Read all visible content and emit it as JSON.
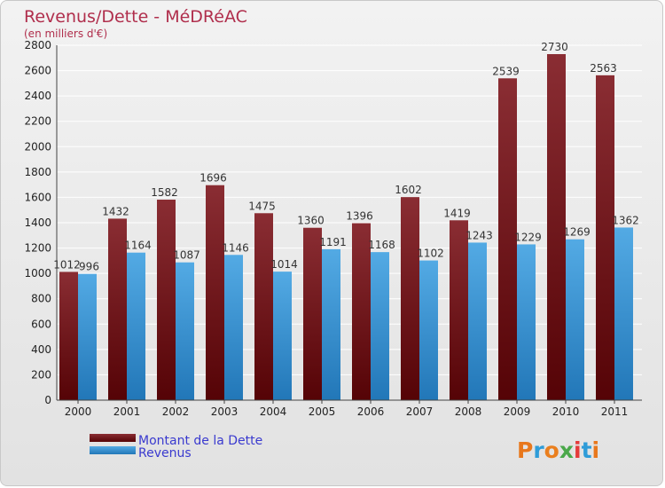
{
  "chart_data": {
    "type": "bar",
    "title": "Revenus/Dette - MéDRéAC",
    "subtitle": "(en milliers d'€)",
    "categories": [
      "2000",
      "2001",
      "2002",
      "2003",
      "2004",
      "2005",
      "2006",
      "2007",
      "2008",
      "2009",
      "2010",
      "2011"
    ],
    "series": [
      {
        "name": "Montant de la Dette",
        "color": "#7a1f25",
        "values": [
          1012,
          1432,
          1582,
          1696,
          1475,
          1360,
          1396,
          1602,
          1419,
          2539,
          2730,
          2563
        ]
      },
      {
        "name": "Revenus",
        "color": "#3d9ad6",
        "values": [
          996,
          1164,
          1087,
          1146,
          1014,
          1191,
          1168,
          1102,
          1243,
          1229,
          1269,
          1362
        ]
      }
    ],
    "ylim": [
      0,
      2800
    ],
    "yticks": [
      0,
      200,
      400,
      600,
      800,
      1000,
      1200,
      1400,
      1600,
      1800,
      2000,
      2200,
      2400,
      2600,
      2800
    ],
    "grid": true,
    "legend_position": "bottom-left"
  },
  "brand": {
    "logo_text": "Proxiti",
    "logo_letter_colors": [
      "#e8771c",
      "#2e9cd8",
      "#ea7f1e",
      "#4aa84a",
      "#e43b3b",
      "#2e9cd8",
      "#e8771c"
    ]
  },
  "colors": {
    "title": "#b02e4c",
    "legend_text": "#3a3acf",
    "axis_text": "#222222",
    "value_text": "#333333"
  }
}
